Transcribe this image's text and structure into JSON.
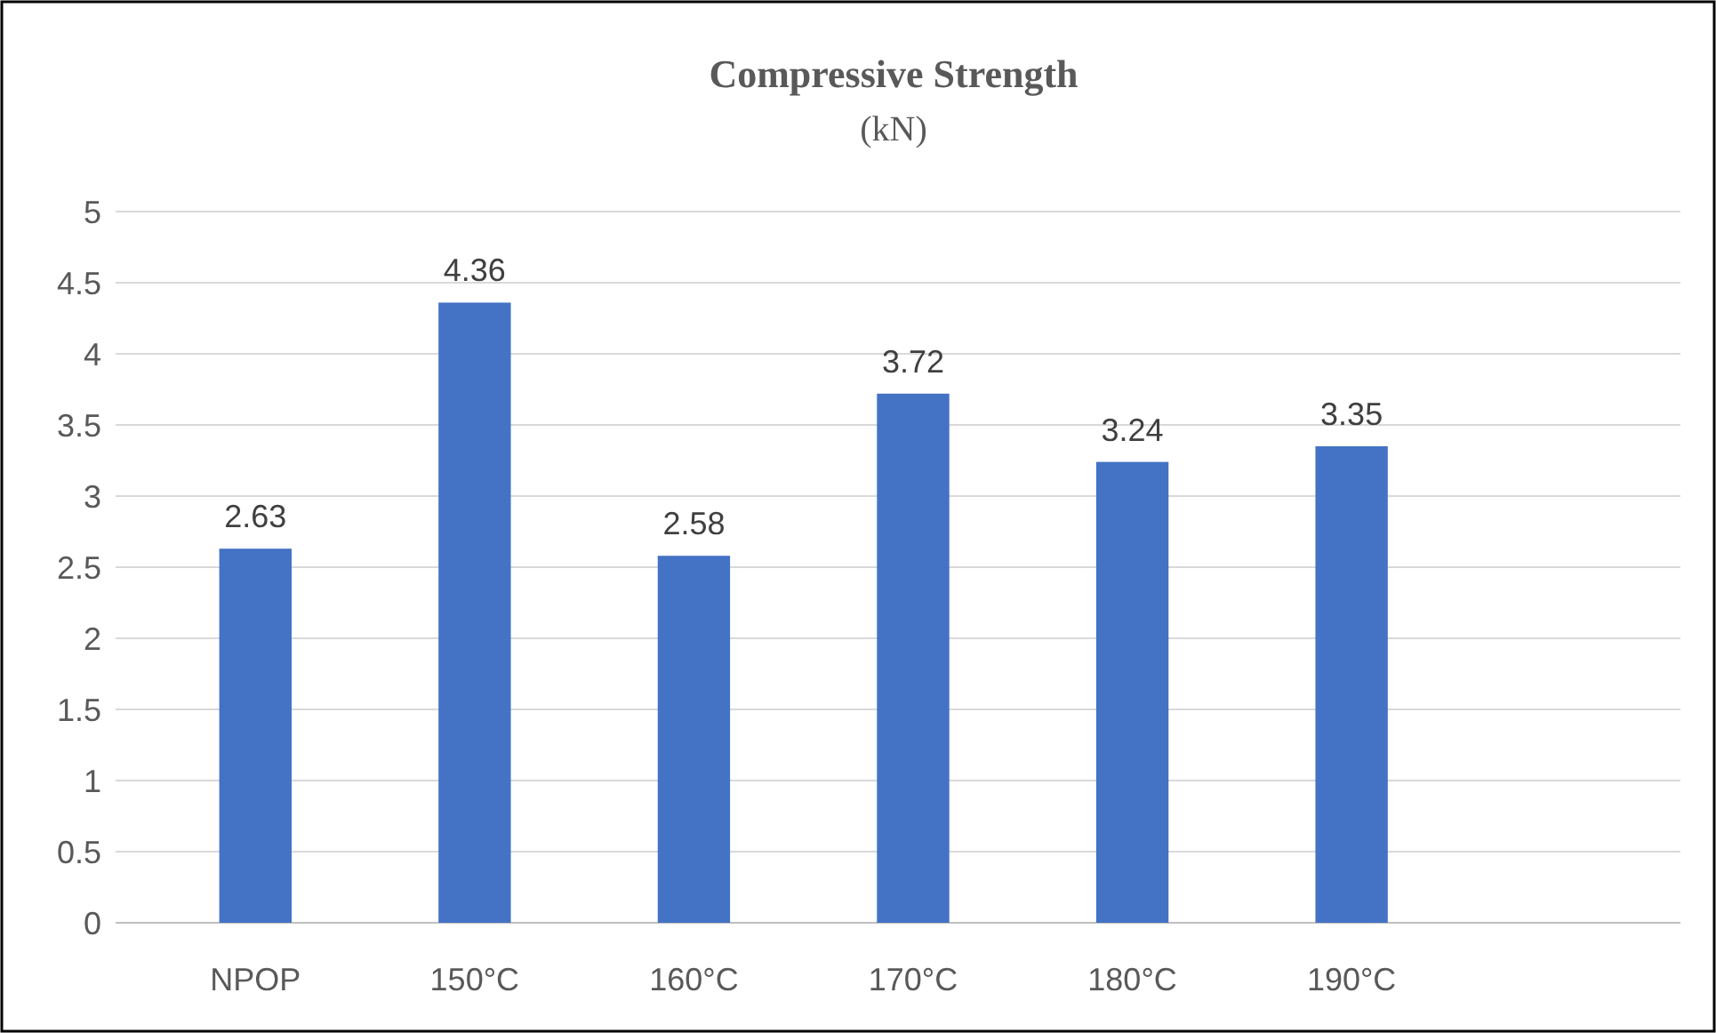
{
  "chart_data": {
    "type": "bar",
    "title": "Compressive Strength",
    "subtitle": "(kN)",
    "categories": [
      "NPOP",
      "150°C",
      "160°C",
      "170°C",
      "180°C",
      "190°C",
      null
    ],
    "values": [
      2.63,
      4.36,
      2.58,
      3.72,
      3.24,
      3.35,
      null
    ],
    "color": "#4472c4",
    "ylim": [
      0,
      5
    ],
    "yticks": [
      0,
      0.5,
      1,
      1.5,
      2,
      2.5,
      3,
      3.5,
      4,
      4.5,
      5
    ],
    "grid": "y",
    "data_labels": true
  }
}
